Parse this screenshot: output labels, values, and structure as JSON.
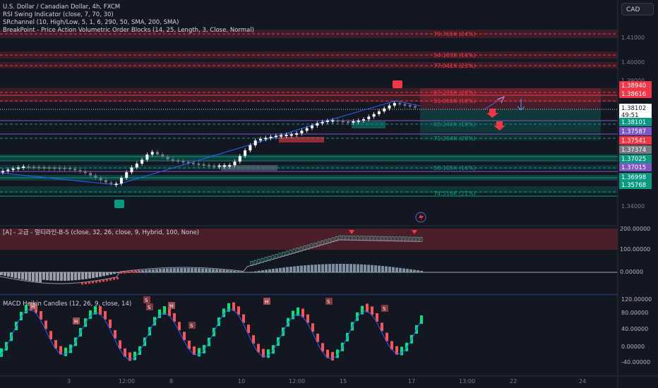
{
  "header": {
    "symbol_line": "U.S. Dollar / Canadian Dollar, 4h, FXCM",
    "indicators": [
      "RSI Swing Indicator (close, 7, 70, 30)",
      "SRchannel (10, High/Low, 5, 1, 6, 290, 50, SMA, 200, SMA)",
      "BreakPoint - Price Action Volumetric Order Blocks (14, 25, Length, 3, Close, Normal)"
    ],
    "currency_button": "CAD"
  },
  "price_axis": {
    "ticks": [
      "1.41000",
      "1.40000",
      "1.39000",
      "1.34000"
    ],
    "badges": [
      {
        "label": "1.38940",
        "color": "#f23645"
      },
      {
        "label": "1.38616",
        "color": "#f23645"
      },
      {
        "label": "1.38102",
        "sub": "49:51",
        "color": "#ffffff"
      },
      {
        "label": "1.38101",
        "color": "#089981"
      },
      {
        "label": "1.37587",
        "color": "#7e57c2"
      },
      {
        "label": "1.37541",
        "color": "#f23645"
      },
      {
        "label": "1.37374",
        "color": "#787b86"
      },
      {
        "label": "1.37025",
        "color": "#089981"
      },
      {
        "label": "1.37015",
        "color": "#7e57c2"
      },
      {
        "label": "1.36998",
        "color": "#089981"
      },
      {
        "label": "1.35768",
        "color": "#089981"
      }
    ]
  },
  "order_block_labels": [
    "79.765K (24%)",
    "54.183K (16%)",
    "77.041K (23%)",
    "67.235K (20%)",
    "51.055K (18%)",
    "65.246K (19%)",
    "71.264K (20%)",
    "58.105K (16%)",
    "74.516K (21%)"
  ],
  "panel2": {
    "legend": "[A] - 고급 - 멀티라인-B-S (close, 32, 26, close, 9, Hybrid, 100, None)",
    "ticks": [
      "200.00000",
      "100.00000",
      "0.00000"
    ]
  },
  "panel3": {
    "legend": "MACD Heikin Candles (12, 26, 9, close, 14)",
    "ticks": [
      "120.00000",
      "80.00000",
      "40.00000",
      "0.00000",
      "-40.00000"
    ],
    "markers": [
      "H",
      "H",
      "S",
      "H",
      "S",
      "S",
      "H",
      "S",
      "S"
    ]
  },
  "time_axis": {
    "labels": [
      "3",
      "12:00",
      "8",
      "10",
      "12:00",
      "15",
      "17",
      "13:00",
      "22",
      "24"
    ]
  },
  "colors": {
    "background": "#131722",
    "bull": "#ffffff",
    "bear": "#787b86",
    "support": "#089981",
    "resistance": "#f23645",
    "channel": "#7e57c2",
    "trend": "#2962ff"
  }
}
